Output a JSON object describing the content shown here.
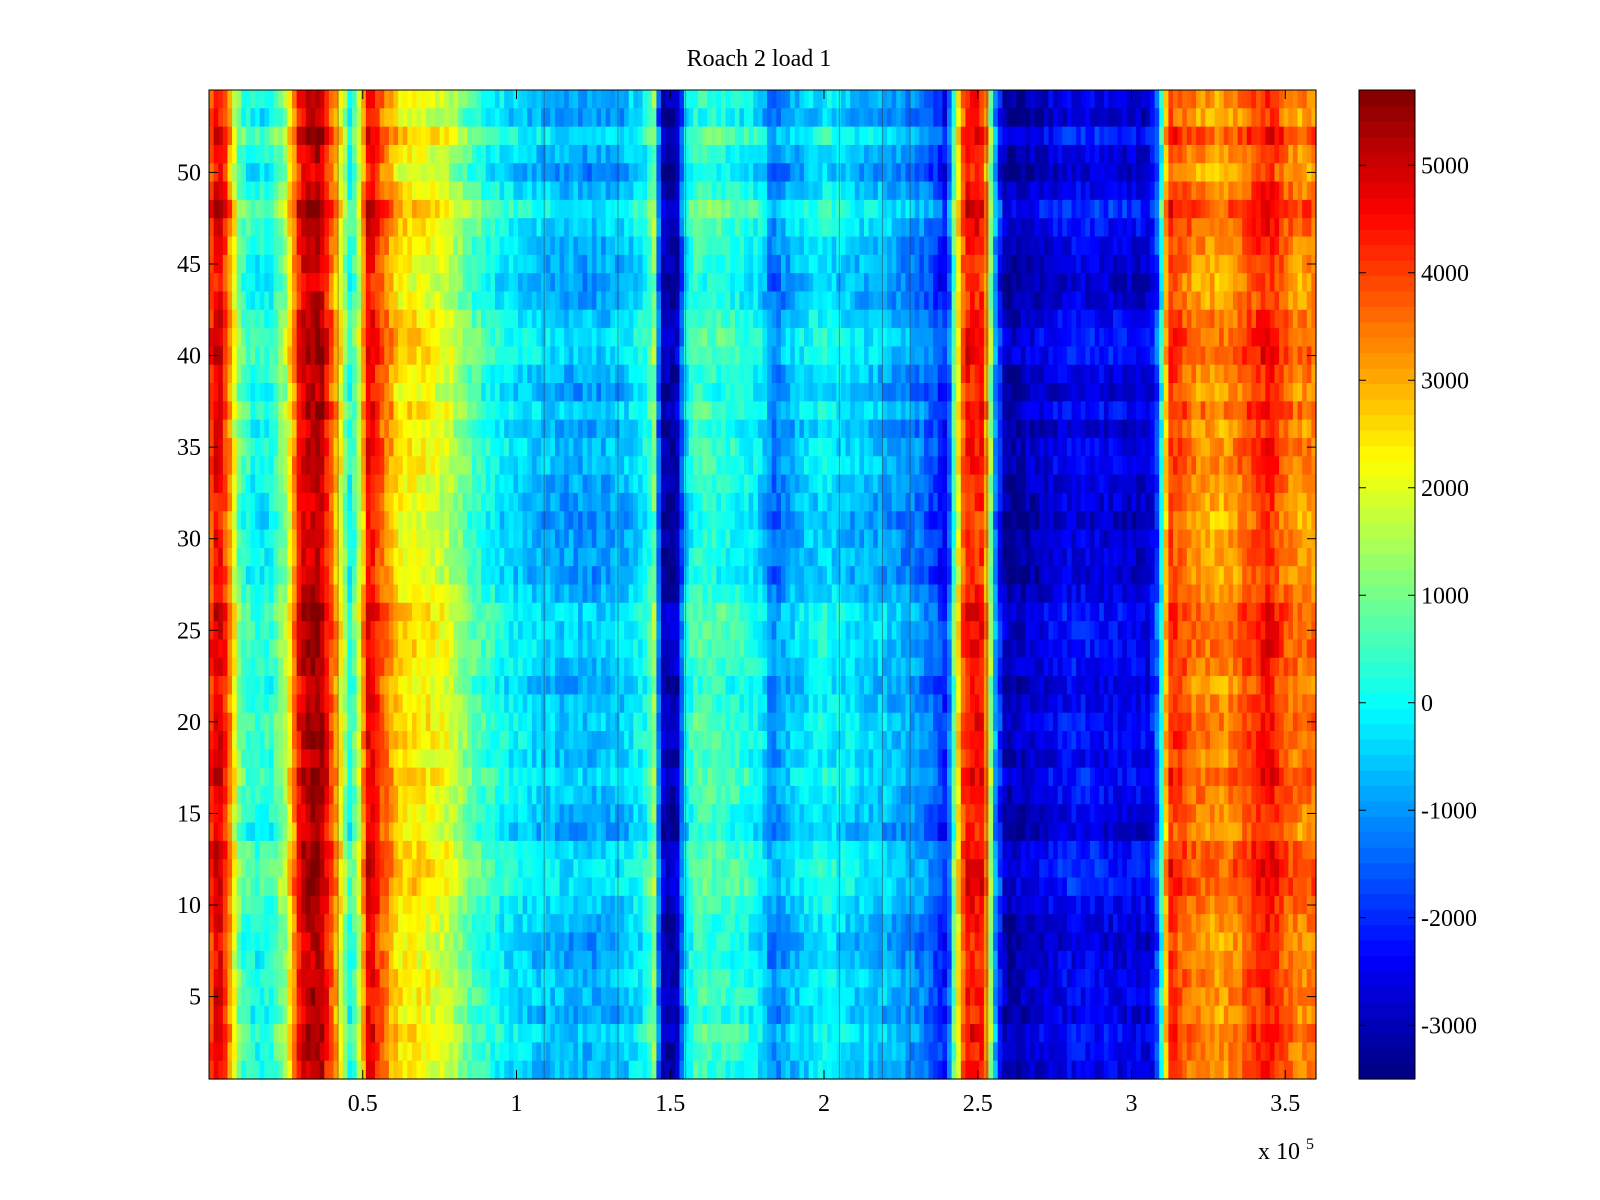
{
  "chart_data": {
    "type": "heatmap",
    "title": "Roach 2 load 1",
    "xlabel": "",
    "ylabel": "",
    "x_multiplier_label": "x 10",
    "x_multiplier_exponent": "5",
    "xlim": [
      0,
      3.6
    ],
    "ylim": [
      0.5,
      54.5
    ],
    "x_ticks": [
      {
        "value": 0.5,
        "label": "0.5"
      },
      {
        "value": 1.0,
        "label": "1"
      },
      {
        "value": 1.5,
        "label": "1.5"
      },
      {
        "value": 2.0,
        "label": "2"
      },
      {
        "value": 2.5,
        "label": "2.5"
      },
      {
        "value": 3.0,
        "label": "3"
      },
      {
        "value": 3.5,
        "label": "3.5"
      }
    ],
    "y_ticks": [
      {
        "value": 5,
        "label": "5"
      },
      {
        "value": 10,
        "label": "10"
      },
      {
        "value": 15,
        "label": "15"
      },
      {
        "value": 20,
        "label": "20"
      },
      {
        "value": 25,
        "label": "25"
      },
      {
        "value": 30,
        "label": "30"
      },
      {
        "value": 35,
        "label": "35"
      },
      {
        "value": 40,
        "label": "40"
      },
      {
        "value": 45,
        "label": "45"
      },
      {
        "value": 50,
        "label": "50"
      }
    ],
    "rows": 54,
    "colormap": "jet",
    "color_range": [
      -3500,
      5700
    ],
    "colorbar_ticks": [
      {
        "value": 5000,
        "label": "5000"
      },
      {
        "value": 4000,
        "label": "4000"
      },
      {
        "value": 3000,
        "label": "3000"
      },
      {
        "value": 2000,
        "label": "2000"
      },
      {
        "value": 1000,
        "label": "1000"
      },
      {
        "value": 0,
        "label": "0"
      },
      {
        "value": -1000,
        "label": "-1000"
      },
      {
        "value": -2000,
        "label": "-2000"
      },
      {
        "value": -3000,
        "label": "-3000"
      }
    ],
    "column_profile_x": [
      0.0,
      0.03,
      0.06,
      0.1,
      0.15,
      0.2,
      0.25,
      0.3,
      0.36,
      0.42,
      0.46,
      0.48,
      0.52,
      0.56,
      0.62,
      0.7,
      0.78,
      0.85,
      0.95,
      1.05,
      1.15,
      1.25,
      1.35,
      1.42,
      1.45,
      1.47,
      1.52,
      1.55,
      1.58,
      1.65,
      1.75,
      1.8,
      1.83,
      1.9,
      2.0,
      2.1,
      2.2,
      2.3,
      2.36,
      2.4,
      2.43,
      2.46,
      2.52,
      2.56,
      2.59,
      2.62,
      2.7,
      2.8,
      2.9,
      3.0,
      3.06,
      3.09,
      3.12,
      3.2,
      3.3,
      3.38,
      3.45,
      3.5,
      3.55,
      3.6
    ],
    "column_profile_value": [
      3500,
      4800,
      3600,
      500,
      -200,
      0,
      1200,
      4700,
      5200,
      2500,
      -200,
      800,
      4600,
      3600,
      2200,
      2000,
      1600,
      500,
      -300,
      -700,
      -900,
      -1000,
      -800,
      -200,
      1000,
      -3200,
      -3400,
      -500,
      300,
      200,
      -100,
      -500,
      -1500,
      -800,
      -300,
      -700,
      -900,
      -1300,
      -1800,
      -2600,
      1500,
      4200,
      4100,
      -1500,
      -3400,
      -3300,
      -3000,
      -2600,
      -2700,
      -2800,
      -2900,
      -1500,
      4000,
      3200,
      2900,
      3600,
      4300,
      3400,
      3100,
      3300
    ],
    "row_offsets": [
      200,
      -100,
      700,
      100,
      -200,
      300,
      900,
      500,
      200,
      100,
      -100,
      0,
      400,
      600,
      600,
      200,
      0,
      500,
      0,
      300,
      300,
      100,
      0,
      -200,
      0,
      0,
      -100,
      200,
      600,
      500,
      500,
      400,
      100,
      300,
      500,
      500,
      300,
      600,
      400,
      200,
      0,
      600,
      700,
      700,
      400,
      200,
      0,
      100,
      300,
      300,
      100,
      500,
      300,
      200
    ]
  }
}
